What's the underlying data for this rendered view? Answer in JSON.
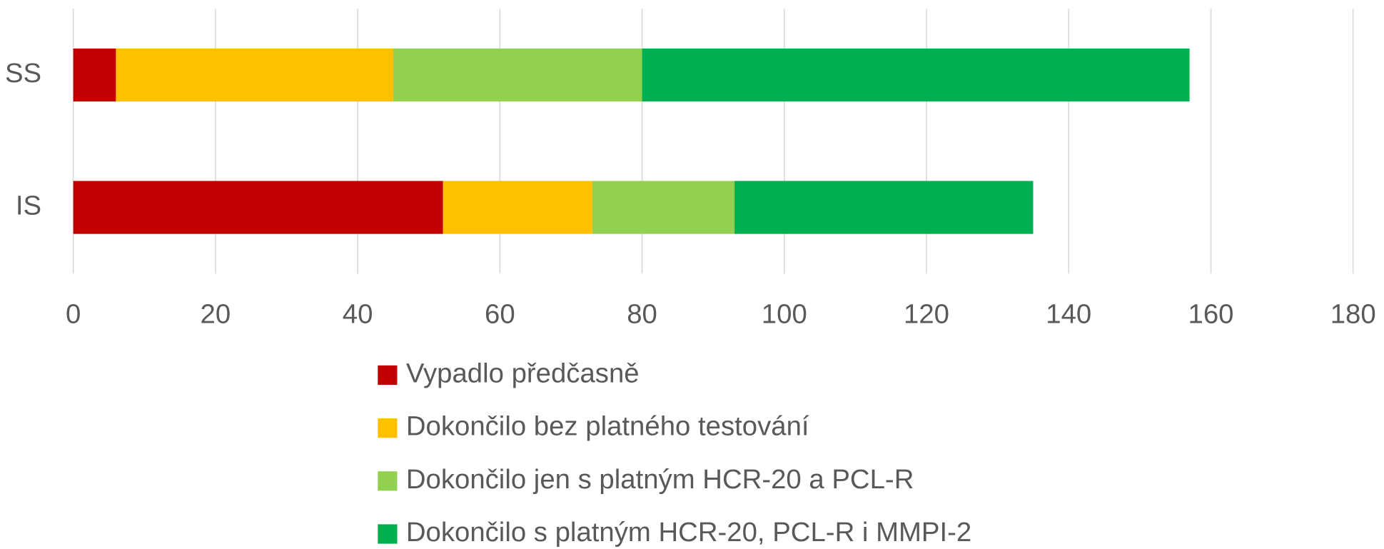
{
  "chart_data": {
    "type": "stacked_barh",
    "categories": [
      "SS",
      "IS"
    ],
    "series": [
      {
        "name": "Vypadlo předčasně",
        "color": "#c00000",
        "values": [
          6,
          52
        ]
      },
      {
        "name": "Dokončilo bez platného testování",
        "color": "#ffc000",
        "values": [
          39,
          21
        ]
      },
      {
        "name": "Dokončilo jen s platným HCR-20 a PCL-R",
        "color": "#92d050",
        "values": [
          35,
          20
        ]
      },
      {
        "name": "Dokončilo s platným HCR-20, PCL-R i MMPI-2",
        "color": "#00b050",
        "values": [
          77,
          42
        ]
      }
    ],
    "xlim": [
      0,
      180
    ],
    "xticks": [
      0,
      20,
      40,
      60,
      80,
      100,
      120,
      140,
      160,
      180
    ],
    "grid": true,
    "legend": "bottom"
  }
}
